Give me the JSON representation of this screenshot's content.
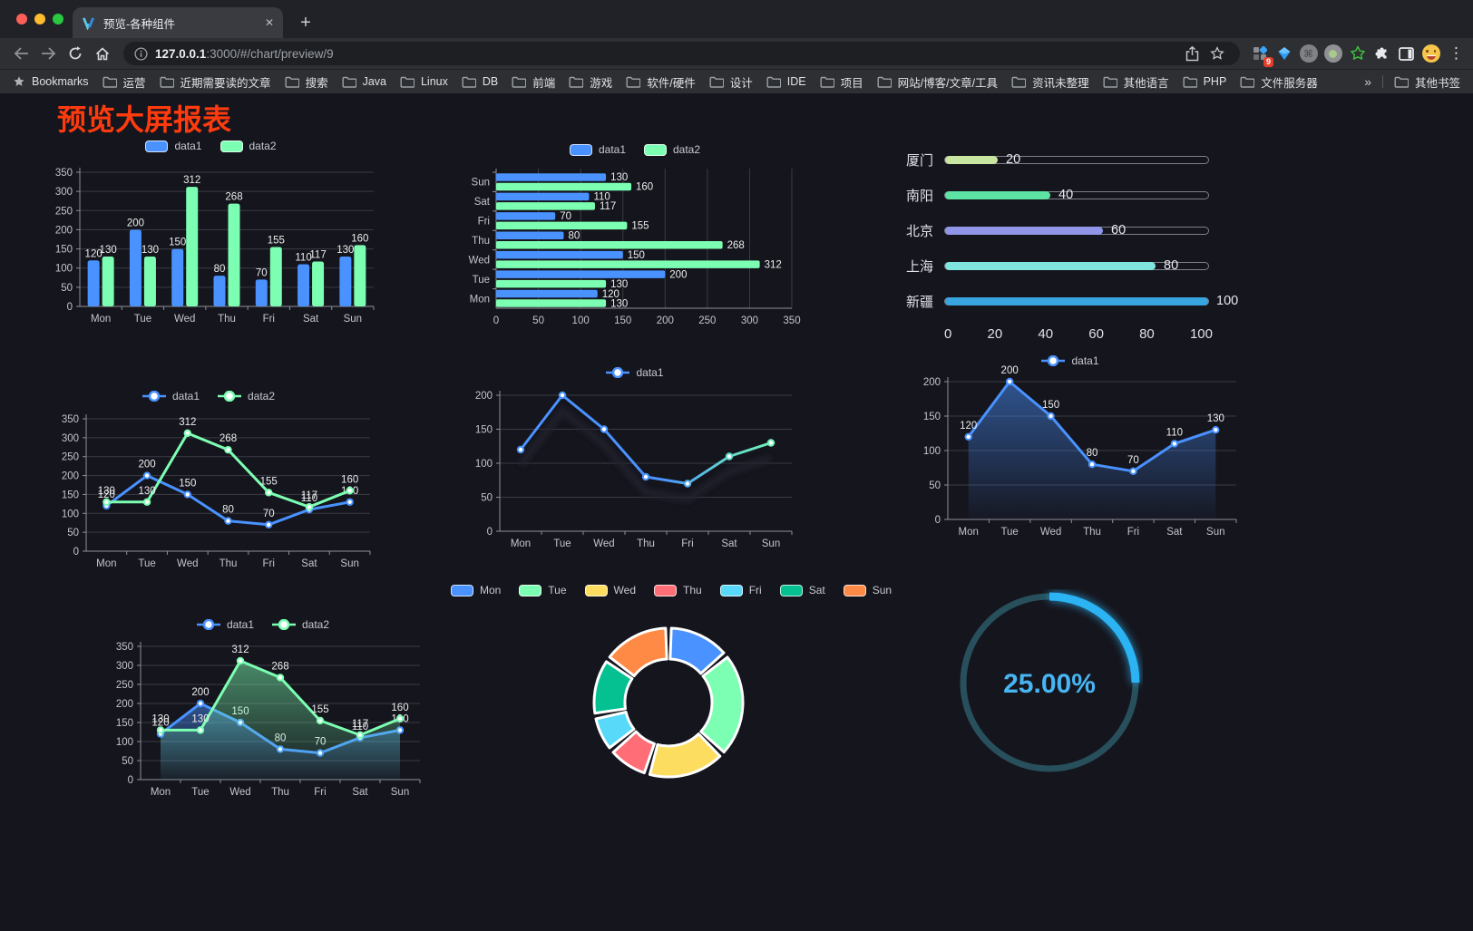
{
  "browser": {
    "tab_title": "预览-各种组件",
    "new_tab_label": "+",
    "close_label": "✕",
    "url_host": "127.0.0.1",
    "url_rest": ":3000/#/chart/preview/9",
    "extension_badge": "9",
    "menu_dots": "⋮",
    "bookmarks_label": "Bookmarks",
    "bookmarks": [
      "运营",
      "近期需要读的文章",
      "搜索",
      "Java",
      "Linux",
      "DB",
      "前端",
      "游戏",
      "软件/硬件",
      "设计",
      "IDE",
      "项目",
      "网站/博客/文章/工具",
      "资讯未整理",
      "其他语言",
      "PHP",
      "文件服务器"
    ],
    "overflow_chevron": "»",
    "other_bookmarks_label": "其他书签"
  },
  "page": {
    "title": "预览大屏报表",
    "title_color": "#fe3b0e",
    "background": "#15151d"
  },
  "chart_data": [
    {
      "id": "bar-vertical",
      "type": "bar",
      "categories": [
        "Mon",
        "Tue",
        "Wed",
        "Thu",
        "Fri",
        "Sat",
        "Sun"
      ],
      "series": [
        {
          "name": "data1",
          "color": "#4992ff",
          "values": [
            120,
            200,
            150,
            80,
            70,
            110,
            130
          ]
        },
        {
          "name": "data2",
          "color": "#7cffb2",
          "values": [
            130,
            130,
            312,
            268,
            155,
            117,
            160
          ]
        }
      ],
      "ylim": [
        0,
        350
      ],
      "ytick_step": 50,
      "grid": true,
      "legend_position": "top",
      "show_labels": true
    },
    {
      "id": "bar-horizontal",
      "type": "bar-horizontal",
      "categories": [
        "Mon",
        "Tue",
        "Wed",
        "Thu",
        "Fri",
        "Sat",
        "Sun"
      ],
      "display_order_top_to_bottom": [
        "Sun",
        "Sat",
        "Fri",
        "Thu",
        "Wed",
        "Tue",
        "Mon"
      ],
      "series": [
        {
          "name": "data1",
          "color": "#4992ff",
          "values": [
            120,
            200,
            150,
            80,
            70,
            110,
            130
          ]
        },
        {
          "name": "data2",
          "color": "#7cffb2",
          "values": [
            130,
            130,
            312,
            268,
            155,
            117,
            160
          ]
        }
      ],
      "xlim": [
        0,
        350
      ],
      "xtick_step": 50,
      "grid": true,
      "legend_position": "top",
      "show_labels": true
    },
    {
      "id": "city-progress",
      "type": "progress",
      "max": 100,
      "xticks": [
        0,
        20,
        40,
        60,
        80,
        100
      ],
      "rows": [
        {
          "label": "厦门",
          "value": 20,
          "color": "#c9e6a0"
        },
        {
          "label": "南阳",
          "value": 40,
          "color": "#5de3a4"
        },
        {
          "label": "北京",
          "value": 60,
          "color": "#9095e8"
        },
        {
          "label": "上海",
          "value": 80,
          "color": "#80e5e0"
        },
        {
          "label": "新疆",
          "value": 100,
          "color": "#38a4e0"
        }
      ]
    },
    {
      "id": "line-two",
      "type": "line",
      "categories": [
        "Mon",
        "Tue",
        "Wed",
        "Thu",
        "Fri",
        "Sat",
        "Sun"
      ],
      "series": [
        {
          "name": "data1",
          "color": "#4992ff",
          "values": [
            120,
            200,
            150,
            80,
            70,
            110,
            130
          ]
        },
        {
          "name": "data2",
          "color": "#7cffb2",
          "values": [
            130,
            130,
            312,
            268,
            155,
            117,
            160
          ]
        }
      ],
      "ylim": [
        0,
        350
      ],
      "ytick_step": 50,
      "show_labels": true,
      "legend_position": "top"
    },
    {
      "id": "line-gradient",
      "type": "line",
      "categories": [
        "Mon",
        "Tue",
        "Wed",
        "Thu",
        "Fri",
        "Sat",
        "Sun"
      ],
      "series": [
        {
          "name": "data1",
          "color": "#4992ff",
          "gradient_end": "#7cffb2",
          "values": [
            120,
            200,
            150,
            80,
            70,
            110,
            130
          ]
        }
      ],
      "ylim": [
        0,
        200
      ],
      "ytick_step": 50,
      "show_labels": false,
      "legend_position": "top",
      "shadow": true
    },
    {
      "id": "area-single",
      "type": "area",
      "categories": [
        "Mon",
        "Tue",
        "Wed",
        "Thu",
        "Fri",
        "Sat",
        "Sun"
      ],
      "series": [
        {
          "name": "data1",
          "color": "#4992ff",
          "values": [
            120,
            200,
            150,
            80,
            70,
            110,
            130
          ]
        }
      ],
      "ylim": [
        0,
        200
      ],
      "ytick_step": 50,
      "show_labels": true,
      "legend_position": "top"
    },
    {
      "id": "area-two",
      "type": "area",
      "categories": [
        "Mon",
        "Tue",
        "Wed",
        "Thu",
        "Fri",
        "Sat",
        "Sun"
      ],
      "series": [
        {
          "name": "data1",
          "color": "#4992ff",
          "values": [
            120,
            200,
            150,
            80,
            70,
            110,
            130
          ]
        },
        {
          "name": "data2",
          "color": "#7cffb2",
          "values": [
            130,
            130,
            312,
            268,
            155,
            117,
            160
          ]
        }
      ],
      "ylim": [
        0,
        350
      ],
      "ytick_step": 50,
      "show_labels": true,
      "legend_position": "top"
    },
    {
      "id": "donut",
      "type": "pie",
      "categories": [
        "Mon",
        "Tue",
        "Wed",
        "Thu",
        "Fri",
        "Sat",
        "Sun"
      ],
      "values": [
        120,
        200,
        150,
        80,
        70,
        110,
        130
      ],
      "colors": [
        "#4992ff",
        "#7cffb2",
        "#fddd60",
        "#ff6e76",
        "#58d9f9",
        "#05c091",
        "#ff8a45"
      ],
      "legend_position": "top",
      "inner_radius_ratio": 0.59
    },
    {
      "id": "gauge",
      "type": "gauge",
      "percent": 25,
      "label": "25.00%",
      "color": "#2bb3f3",
      "track_color": "#27505c",
      "text_color": "#47b5f2"
    }
  ]
}
